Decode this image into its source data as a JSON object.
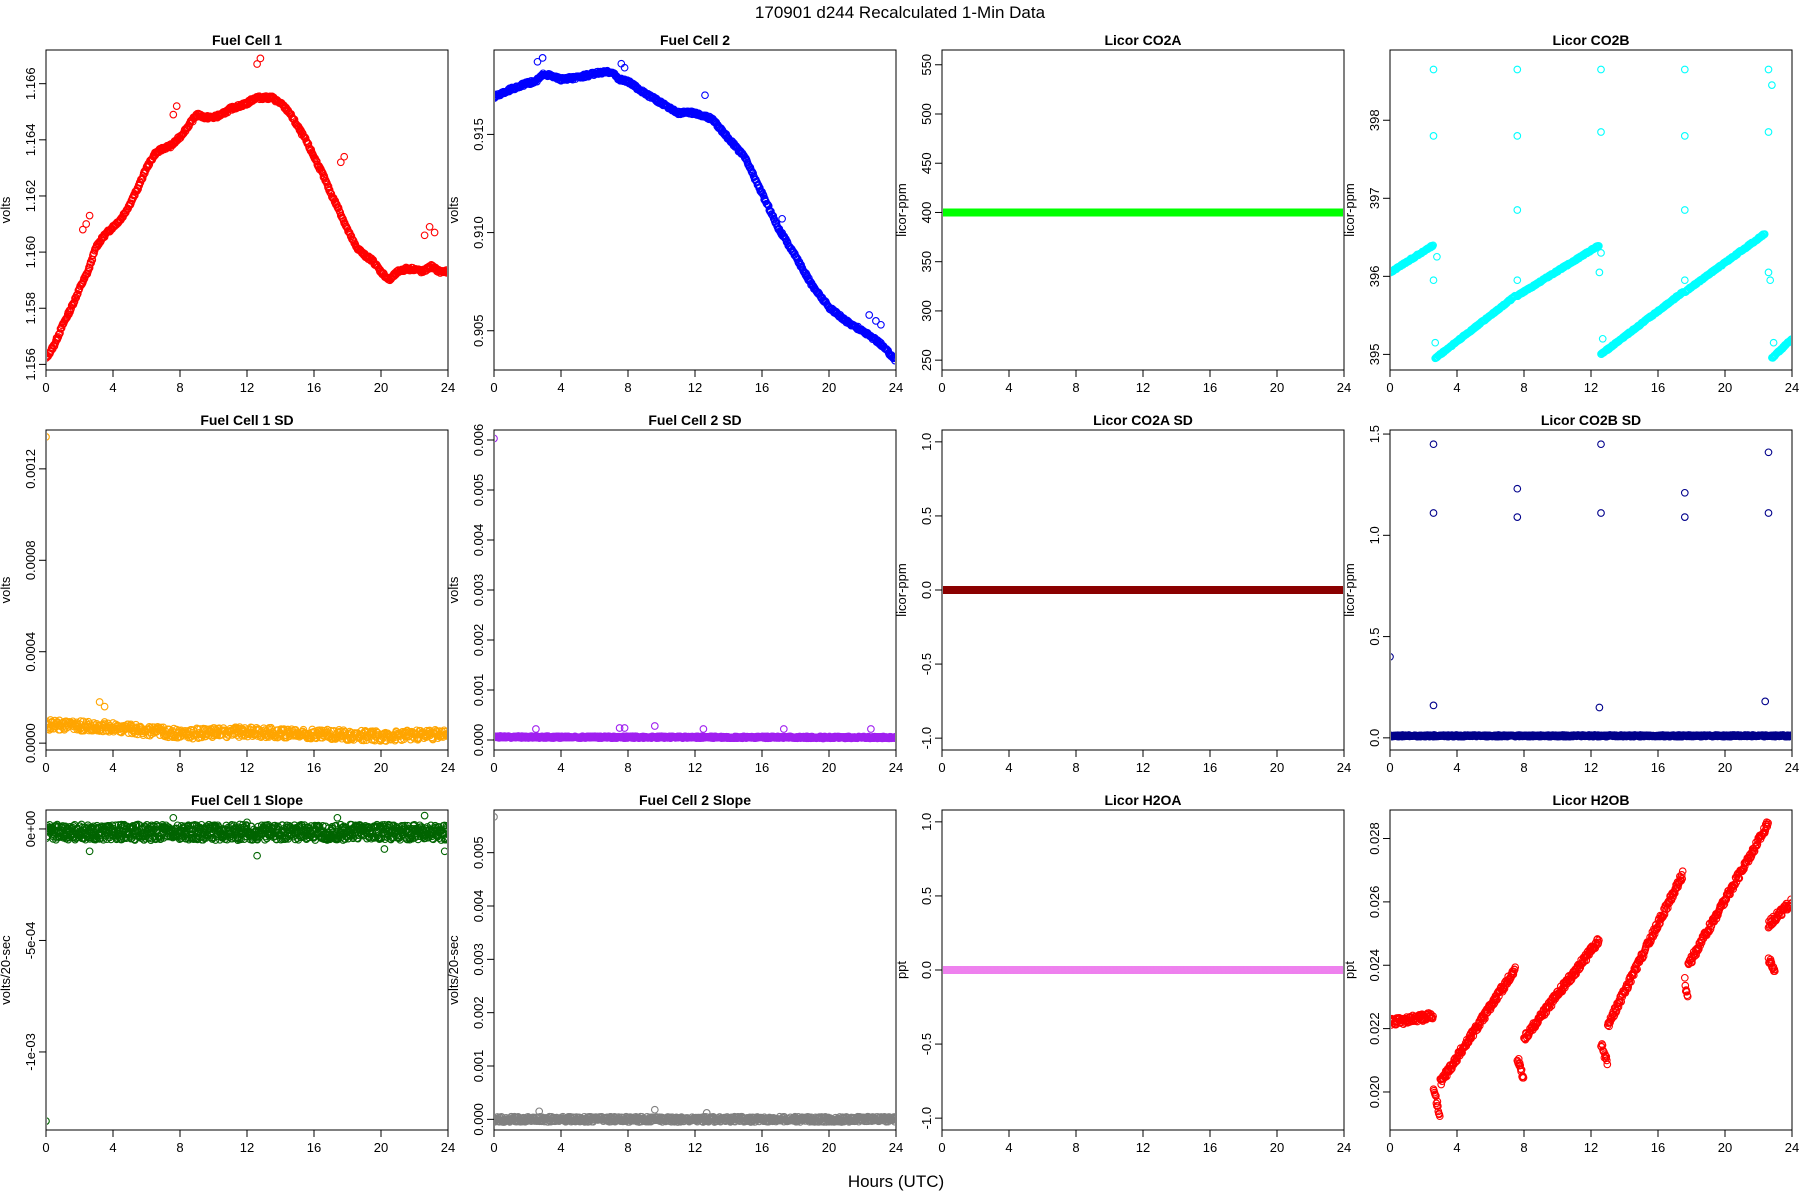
{
  "figure": {
    "title": "170901    d244    Recalculated 1-Min Data",
    "xlabel": "Hours (UTC)"
  },
  "chart_data": [
    {
      "type": "scatter",
      "title": "Fuel Cell 1",
      "ylabel": "volts",
      "color": "#ff0000",
      "xlim": [
        0,
        24
      ],
      "ylim": [
        1.1558,
        1.1672
      ],
      "xticks": [
        0,
        4,
        8,
        12,
        16,
        20,
        24
      ],
      "yticks": [
        1.156,
        1.158,
        1.16,
        1.162,
        1.164,
        1.166
      ],
      "ytick_labels": [
        "1.156",
        "1.158",
        "1.160",
        "1.162",
        "1.164",
        "1.166"
      ],
      "x": [
        0,
        0.5,
        1,
        1.5,
        2,
        2.5,
        3,
        3.5,
        4,
        4.5,
        5,
        5.5,
        6,
        6.5,
        7,
        7.5,
        8,
        8.5,
        9,
        9.5,
        10,
        10.5,
        11,
        11.5,
        12,
        12.5,
        13,
        13.5,
        14,
        14.5,
        15,
        15.5,
        16,
        16.5,
        17,
        17.5,
        18,
        18.5,
        19,
        19.5,
        20,
        20.5,
        21,
        21.5,
        22,
        22.5,
        23,
        23.5,
        24
      ],
      "y": [
        1.1562,
        1.1567,
        1.1574,
        1.158,
        1.1587,
        1.1593,
        1.1602,
        1.1606,
        1.1609,
        1.1612,
        1.1617,
        1.1623,
        1.163,
        1.1635,
        1.1637,
        1.1638,
        1.1641,
        1.1645,
        1.1649,
        1.1648,
        1.1648,
        1.1649,
        1.1651,
        1.1652,
        1.1653,
        1.1655,
        1.1655,
        1.1655,
        1.1653,
        1.165,
        1.1645,
        1.164,
        1.1634,
        1.1628,
        1.1621,
        1.1615,
        1.1608,
        1.1602,
        1.1599,
        1.1597,
        1.1593,
        1.159,
        1.1593,
        1.1594,
        1.1594,
        1.1593,
        1.1595,
        1.1593,
        1.1593
      ],
      "outliers": {
        "x": [
          2.2,
          2.4,
          2.6,
          7.6,
          7.8,
          12.6,
          12.8,
          17.6,
          17.8,
          22.6,
          22.9,
          23.2
        ],
        "y": [
          1.1608,
          1.161,
          1.1613,
          1.1649,
          1.1652,
          1.1667,
          1.1669,
          1.1632,
          1.1634,
          1.1606,
          1.1609,
          1.1607
        ]
      },
      "jitter": 6e-05,
      "density": 5,
      "filled": false
    },
    {
      "type": "scatter",
      "title": "Fuel Cell 2",
      "ylabel": "volts",
      "color": "#0000ff",
      "xlim": [
        0,
        24
      ],
      "ylim": [
        0.903,
        0.9193
      ],
      "xticks": [
        0,
        4,
        8,
        12,
        16,
        20,
        24
      ],
      "yticks": [
        0.905,
        0.91,
        0.915
      ],
      "ytick_labels": [
        "0.905",
        "0.910",
        "0.915"
      ],
      "x": [
        0,
        1,
        2,
        2.5,
        3,
        4,
        5,
        6,
        7,
        7.5,
        8,
        9,
        10,
        11,
        12,
        13,
        14,
        15,
        16,
        17,
        18,
        19,
        20,
        21,
        22,
        23,
        24
      ],
      "y": [
        0.9169,
        0.9173,
        0.9176,
        0.9177,
        0.9181,
        0.9178,
        0.9179,
        0.9181,
        0.9182,
        0.9178,
        0.9177,
        0.9171,
        0.9166,
        0.9161,
        0.9161,
        0.9158,
        0.9148,
        0.9138,
        0.912,
        0.9102,
        0.9088,
        0.9073,
        0.9062,
        0.9055,
        0.905,
        0.9044,
        0.9035
      ],
      "outliers": {
        "x": [
          2.6,
          2.9,
          7.6,
          7.8,
          12.6,
          17.2,
          22.4,
          22.8,
          23.1
        ],
        "y": [
          0.9187,
          0.9189,
          0.9186,
          0.9184,
          0.917,
          0.9107,
          0.9058,
          0.9055,
          0.9053
        ]
      },
      "jitter": 8e-05,
      "density": 5,
      "filled": false
    },
    {
      "type": "scatter",
      "title": "Licor CO2A",
      "ylabel": "licor-ppm",
      "color": "#00ff00",
      "xlim": [
        0,
        24
      ],
      "ylim": [
        240,
        565
      ],
      "xticks": [
        0,
        4,
        8,
        12,
        16,
        20,
        24
      ],
      "yticks": [
        250,
        300,
        350,
        400,
        450,
        500,
        550
      ],
      "ytick_labels": [
        "250",
        "300",
        "350",
        "400",
        "450",
        "500",
        "550"
      ],
      "x": [
        0,
        24
      ],
      "y": [
        400,
        400
      ],
      "outliers": {
        "x": [],
        "y": []
      },
      "jitter": 0,
      "density": 8,
      "filled": true
    },
    {
      "type": "scatter",
      "title": "Licor CO2B",
      "ylabel": "licor-ppm",
      "color": "#00ffff",
      "xlim": [
        0,
        24
      ],
      "ylim": [
        394.8,
        398.9
      ],
      "xticks": [
        0,
        4,
        8,
        12,
        16,
        20,
        24
      ],
      "yticks": [
        395,
        396,
        397,
        398
      ],
      "ytick_labels": [
        "395",
        "396",
        "397",
        "398"
      ],
      "segments": [
        {
          "x": [
            0,
            2.6
          ],
          "y": [
            396.05,
            396.4
          ]
        },
        {
          "x": [
            2.7,
            7.5
          ],
          "y": [
            394.95,
            395.75
          ]
        },
        {
          "x": [
            7.6,
            12.5
          ],
          "y": [
            395.75,
            396.4
          ]
        },
        {
          "x": [
            12.6,
            17.5
          ],
          "y": [
            395.0,
            395.8
          ]
        },
        {
          "x": [
            17.6,
            22.4
          ],
          "y": [
            395.8,
            396.55
          ]
        },
        {
          "x": [
            22.8,
            24
          ],
          "y": [
            394.95,
            395.2
          ]
        }
      ],
      "outliers": {
        "x": [
          -0.2,
          2.6,
          2.6,
          2.7,
          2.8,
          2.6,
          7.6,
          7.6,
          7.6,
          7.6,
          12.6,
          12.6,
          12.6,
          12.5,
          12.7,
          17.6,
          17.6,
          17.6,
          17.6,
          22.6,
          22.6,
          22.6,
          22.8,
          22.7,
          22.9
        ],
        "y": [
          395.8,
          398.65,
          397.8,
          395.15,
          396.25,
          395.95,
          398.65,
          397.8,
          396.85,
          395.95,
          398.65,
          397.85,
          396.3,
          396.05,
          395.2,
          398.65,
          397.8,
          396.85,
          395.95,
          398.65,
          397.85,
          396.05,
          398.45,
          395.95,
          395.15
        ]
      },
      "jitter": 0.01,
      "density": 6,
      "filled": false
    },
    {
      "type": "scatter",
      "title": "Fuel Cell 1 SD",
      "ylabel": "volts",
      "color": "#ffa500",
      "xlim": [
        0,
        24
      ],
      "ylim": [
        -3e-05,
        0.00137
      ],
      "xticks": [
        0,
        4,
        8,
        12,
        16,
        20,
        24
      ],
      "yticks": [
        0.0,
        0.0004,
        0.0008,
        0.0012
      ],
      "ytick_labels": [
        "0.0000",
        "0.0004",
        "0.0008",
        "0.0012"
      ],
      "x": [
        0,
        4,
        8,
        12,
        16,
        20,
        24
      ],
      "y": [
        8e-05,
        7e-05,
        4e-05,
        5e-05,
        4e-05,
        3e-05,
        4e-05
      ],
      "outliers": {
        "x": [
          0,
          3.2,
          3.5
        ],
        "y": [
          0.00134,
          0.00018,
          0.00016
        ]
      },
      "jitter": 2.2e-05,
      "density": 5,
      "filled": false
    },
    {
      "type": "scatter",
      "title": "Fuel Cell 2 SD",
      "ylabel": "volts",
      "color": "#a020f0",
      "xlim": [
        0,
        24
      ],
      "ylim": [
        -0.0002,
        0.0062
      ],
      "xticks": [
        0,
        4,
        8,
        12,
        16,
        20,
        24
      ],
      "yticks": [
        0.0,
        0.001,
        0.002,
        0.003,
        0.004,
        0.005,
        0.006
      ],
      "ytick_labels": [
        "0.000",
        "0.001",
        "0.002",
        "0.003",
        "0.004",
        "0.005",
        "0.006"
      ],
      "x": [
        0,
        24
      ],
      "y": [
        6e-05,
        5e-05
      ],
      "outliers": {
        "x": [
          0,
          2.5,
          7.5,
          7.8,
          9.6,
          12.5,
          17.3,
          22.5
        ],
        "y": [
          0.00603,
          0.00022,
          0.00024,
          0.00024,
          0.00028,
          0.00022,
          0.00022,
          0.00022
        ]
      },
      "jitter": 2e-05,
      "density": 6,
      "filled": false
    },
    {
      "type": "scatter",
      "title": "Licor CO2A SD",
      "ylabel": "licor-ppm",
      "color": "#8b0000",
      "xlim": [
        0,
        24
      ],
      "ylim": [
        -1.08,
        1.08
      ],
      "xticks": [
        0,
        4,
        8,
        12,
        16,
        20,
        24
      ],
      "yticks": [
        -1.0,
        -0.5,
        0.0,
        0.5,
        1.0
      ],
      "ytick_labels": [
        "-1.0",
        "-0.5",
        "0.0",
        "0.5",
        "1.0"
      ],
      "x": [
        0,
        24
      ],
      "y": [
        0,
        0
      ],
      "outliers": {
        "x": [],
        "y": []
      },
      "jitter": 0,
      "density": 8,
      "filled": true
    },
    {
      "type": "scatter",
      "title": "Licor CO2B SD",
      "ylabel": "licor-ppm",
      "color": "#00008b",
      "xlim": [
        0,
        24
      ],
      "ylim": [
        -0.06,
        1.52
      ],
      "xticks": [
        0,
        4,
        8,
        12,
        16,
        20,
        24
      ],
      "yticks": [
        0.0,
        0.5,
        1.0,
        1.5
      ],
      "ytick_labels": [
        "0.0",
        "0.5",
        "1.0",
        "1.5"
      ],
      "x": [
        0,
        24
      ],
      "y": [
        0.01,
        0.01
      ],
      "outliers": {
        "x": [
          0,
          2.6,
          2.6,
          2.6,
          7.6,
          7.6,
          12.5,
          12.6,
          12.6,
          17.6,
          17.6,
          22.4,
          22.6,
          22.6
        ],
        "y": [
          0.4,
          1.45,
          1.11,
          0.16,
          1.23,
          1.09,
          0.15,
          1.45,
          1.11,
          1.21,
          1.09,
          0.18,
          1.41,
          1.11
        ]
      },
      "jitter": 0.004,
      "density": 6,
      "filled": false
    },
    {
      "type": "scatter",
      "title": "Fuel Cell 1 Slope",
      "ylabel": "volts/20-sec",
      "color": "#006400",
      "xlim": [
        0,
        24
      ],
      "ylim": [
        -0.00135,
        8.5e-05
      ],
      "xticks": [
        0,
        4,
        8,
        12,
        16,
        20,
        24
      ],
      "yticks": [
        0.0,
        -0.0005,
        -0.001
      ],
      "ytick_labels": [
        "0e+00",
        "-5e-04",
        "-1e-03"
      ],
      "x": [
        0,
        24
      ],
      "y": [
        -1.5e-05,
        -1.5e-05
      ],
      "outliers": {
        "x": [
          0,
          7.6,
          12,
          12.6,
          17.4,
          22.6,
          2.6,
          20.2,
          23.8
        ],
        "y": [
          -0.00131,
          5e-05,
          3e-05,
          -0.00012,
          5e-05,
          6e-05,
          -0.0001,
          -9e-05,
          -0.0001
        ]
      },
      "jitter": 3.5e-05,
      "density": 7,
      "filled": false
    },
    {
      "type": "scatter",
      "title": "Fuel Cell 2 Slope",
      "ylabel": "volts/20-sec",
      "color": "#808080",
      "xlim": [
        0,
        24
      ],
      "ylim": [
        -0.0002,
        0.0058
      ],
      "xticks": [
        0,
        4,
        8,
        12,
        16,
        20,
        24
      ],
      "yticks": [
        0.0,
        0.001,
        0.002,
        0.003,
        0.004,
        0.005
      ],
      "ytick_labels": [
        "0.000",
        "0.001",
        "0.002",
        "0.003",
        "0.004",
        "0.005"
      ],
      "x": [
        0,
        24
      ],
      "y": [
        0,
        0
      ],
      "outliers": {
        "x": [
          0,
          9.6,
          7.7,
          2.7,
          12.7
        ],
        "y": [
          0.00567,
          0.00018,
          -0.00025,
          0.00015,
          0.00012
        ]
      },
      "jitter": 5e-05,
      "density": 6,
      "filled": false
    },
    {
      "type": "scatter",
      "title": "Licor H2OA",
      "ylabel": "ppt",
      "color": "#ee82ee",
      "xlim": [
        0,
        24
      ],
      "ylim": [
        -1.08,
        1.08
      ],
      "xticks": [
        0,
        4,
        8,
        12,
        16,
        20,
        24
      ],
      "yticks": [
        -1.0,
        -0.5,
        0.0,
        0.5,
        1.0
      ],
      "ytick_labels": [
        "-1.0",
        "-0.5",
        "0.0",
        "0.5",
        "1.0"
      ],
      "x": [
        0,
        24
      ],
      "y": [
        0,
        0
      ],
      "outliers": {
        "x": [],
        "y": []
      },
      "jitter": 0,
      "density": 8,
      "filled": true
    },
    {
      "type": "scatter",
      "title": "Licor H2OB",
      "ylabel": "ppt",
      "color": "#ff0000",
      "xlim": [
        0,
        24
      ],
      "ylim": [
        0.0188,
        0.0289
      ],
      "xticks": [
        0,
        4,
        8,
        12,
        16,
        20,
        24
      ],
      "yticks": [
        0.02,
        0.022,
        0.024,
        0.026,
        0.028
      ],
      "ytick_labels": [
        "0.020",
        "0.022",
        "0.024",
        "0.026",
        "0.028"
      ],
      "segments": [
        {
          "x": [
            0,
            2.6
          ],
          "y": [
            0.0222,
            0.0224
          ]
        },
        {
          "x": [
            2.6,
            3.0
          ],
          "y": [
            0.0201,
            0.0192
          ]
        },
        {
          "x": [
            3.0,
            7.5
          ],
          "y": [
            0.0203,
            0.0239
          ]
        },
        {
          "x": [
            7.6,
            8.0
          ],
          "y": [
            0.0211,
            0.0204
          ]
        },
        {
          "x": [
            8.0,
            12.5
          ],
          "y": [
            0.0217,
            0.0248
          ]
        },
        {
          "x": [
            12.6,
            13.0
          ],
          "y": [
            0.0215,
            0.0209
          ]
        },
        {
          "x": [
            13.0,
            17.5
          ],
          "y": [
            0.0221,
            0.0269
          ]
        },
        {
          "x": [
            17.6,
            17.8
          ],
          "y": [
            0.0235,
            0.0228
          ]
        },
        {
          "x": [
            17.8,
            22.6
          ],
          "y": [
            0.024,
            0.0285
          ]
        },
        {
          "x": [
            22.6,
            23.0
          ],
          "y": [
            0.0242,
            0.0238
          ]
        },
        {
          "x": [
            22.6,
            24.0
          ],
          "y": [
            0.0253,
            0.026
          ]
        }
      ],
      "outliers": {
        "x": [
          -0.3
        ],
        "y": [
          0.0231
        ]
      },
      "jitter": 0.00012,
      "density": 6,
      "filled": false
    }
  ]
}
